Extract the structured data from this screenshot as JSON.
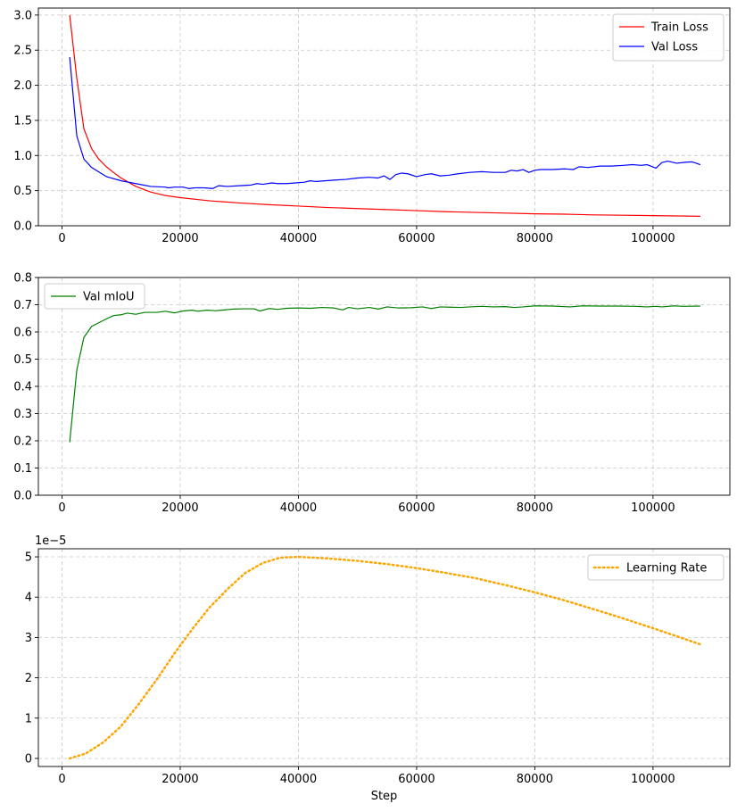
{
  "chart_data": [
    {
      "type": "line",
      "xlim": [
        -4000,
        113000
      ],
      "ylim": [
        0,
        3.1
      ],
      "xticks": [
        0,
        20000,
        40000,
        60000,
        80000,
        100000
      ],
      "xtick_labels": [
        "0",
        "20000",
        "40000",
        "60000",
        "80000",
        "100000"
      ],
      "yticks": [
        0,
        0.5,
        1.0,
        1.5,
        2.0,
        2.5,
        3.0
      ],
      "ytick_labels": [
        "0.0",
        "0.5",
        "1.0",
        "1.5",
        "2.0",
        "2.5",
        "3.0"
      ],
      "grid": true,
      "legend_position": "top-right",
      "xlabel": "",
      "ylabel": "",
      "series": [
        {
          "name": "Train Loss",
          "color": "#ff0000",
          "style": "solid",
          "x": [
            1300,
            2500,
            3700,
            5000,
            6200,
            7500,
            8700,
            10000,
            12500,
            15000,
            17500,
            20000,
            25000,
            30000,
            35000,
            40000,
            45000,
            50000,
            55000,
            60000,
            65000,
            70000,
            75000,
            80000,
            85000,
            90000,
            95000,
            100000,
            104000,
            108000
          ],
          "y": [
            3.0,
            2.1,
            1.38,
            1.1,
            0.95,
            0.84,
            0.76,
            0.68,
            0.56,
            0.48,
            0.43,
            0.4,
            0.355,
            0.325,
            0.3,
            0.28,
            0.26,
            0.245,
            0.23,
            0.215,
            0.2,
            0.19,
            0.18,
            0.17,
            0.165,
            0.155,
            0.15,
            0.145,
            0.14,
            0.135
          ]
        },
        {
          "name": "Val Loss",
          "color": "#0000ff",
          "style": "solid",
          "x": [
            1300,
            2500,
            3700,
            5000,
            7500,
            10000,
            12500,
            15000,
            17500,
            18000,
            19000,
            20500,
            21500,
            22500,
            24000,
            25500,
            26500,
            28000,
            30000,
            32000,
            33000,
            34000,
            35500,
            36500,
            38000,
            39500,
            41000,
            42000,
            43000,
            44500,
            46000,
            48000,
            50000,
            52000,
            53500,
            54500,
            55500,
            56500,
            57500,
            58500,
            60000,
            61500,
            62500,
            64000,
            65500,
            67000,
            69000,
            71000,
            73000,
            75000,
            76000,
            77000,
            78000,
            79000,
            80000,
            81000,
            83000,
            85000,
            86500,
            87500,
            89000,
            91000,
            93000,
            95000,
            96500,
            98000,
            99000,
            100500,
            101500,
            102500,
            104000,
            105000,
            106500,
            107000,
            108000
          ],
          "y": [
            2.4,
            1.28,
            0.95,
            0.83,
            0.7,
            0.64,
            0.6,
            0.56,
            0.55,
            0.54,
            0.55,
            0.55,
            0.53,
            0.54,
            0.54,
            0.53,
            0.57,
            0.56,
            0.57,
            0.58,
            0.6,
            0.59,
            0.61,
            0.6,
            0.6,
            0.61,
            0.62,
            0.64,
            0.63,
            0.64,
            0.65,
            0.66,
            0.68,
            0.69,
            0.68,
            0.71,
            0.66,
            0.73,
            0.75,
            0.74,
            0.7,
            0.73,
            0.74,
            0.71,
            0.72,
            0.74,
            0.76,
            0.77,
            0.76,
            0.76,
            0.79,
            0.78,
            0.8,
            0.76,
            0.79,
            0.8,
            0.8,
            0.81,
            0.8,
            0.84,
            0.83,
            0.85,
            0.85,
            0.86,
            0.87,
            0.86,
            0.87,
            0.82,
            0.9,
            0.92,
            0.89,
            0.9,
            0.91,
            0.9,
            0.87
          ]
        }
      ]
    },
    {
      "type": "line",
      "xlim": [
        -4000,
        113000
      ],
      "ylim": [
        0,
        0.8
      ],
      "xticks": [
        0,
        20000,
        40000,
        60000,
        80000,
        100000
      ],
      "xtick_labels": [
        "0",
        "20000",
        "40000",
        "60000",
        "80000",
        "100000"
      ],
      "yticks": [
        0,
        0.1,
        0.2,
        0.3,
        0.4,
        0.5,
        0.6,
        0.7,
        0.8
      ],
      "ytick_labels": [
        "0.0",
        "0.1",
        "0.2",
        "0.3",
        "0.4",
        "0.5",
        "0.6",
        "0.7",
        "0.8"
      ],
      "grid": true,
      "legend_position": "top-left",
      "xlabel": "",
      "ylabel": "",
      "series": [
        {
          "name": "Val mIoU",
          "color": "#008000",
          "style": "solid",
          "x": [
            1300,
            2500,
            3700,
            5000,
            7500,
            8700,
            10000,
            11000,
            12500,
            14000,
            16000,
            17500,
            19000,
            20500,
            22000,
            23000,
            24500,
            26000,
            27000,
            29000,
            31000,
            32500,
            33500,
            35000,
            36500,
            38000,
            40000,
            42000,
            44000,
            46000,
            47500,
            48500,
            50000,
            52000,
            53500,
            55000,
            57000,
            59000,
            61000,
            62500,
            64000,
            65500,
            67500,
            69000,
            71000,
            73000,
            75000,
            76500,
            78000,
            80000,
            83000,
            86000,
            88000,
            91000,
            94000,
            97000,
            99000,
            100500,
            101500,
            103500,
            105000,
            108000
          ],
          "y": [
            0.195,
            0.46,
            0.58,
            0.62,
            0.648,
            0.66,
            0.663,
            0.669,
            0.665,
            0.672,
            0.672,
            0.676,
            0.67,
            0.677,
            0.68,
            0.676,
            0.68,
            0.678,
            0.68,
            0.684,
            0.685,
            0.685,
            0.677,
            0.686,
            0.683,
            0.687,
            0.688,
            0.687,
            0.69,
            0.688,
            0.681,
            0.69,
            0.685,
            0.69,
            0.684,
            0.692,
            0.688,
            0.689,
            0.692,
            0.686,
            0.692,
            0.691,
            0.69,
            0.692,
            0.694,
            0.692,
            0.693,
            0.69,
            0.692,
            0.696,
            0.695,
            0.692,
            0.696,
            0.695,
            0.695,
            0.694,
            0.692,
            0.694,
            0.692,
            0.696,
            0.694,
            0.695
          ]
        }
      ]
    },
    {
      "type": "line",
      "xlim": [
        -4000,
        113000
      ],
      "ylim": [
        -0.2,
        5.2
      ],
      "xticks": [
        0,
        20000,
        40000,
        60000,
        80000,
        100000
      ],
      "xtick_labels": [
        "0",
        "20000",
        "40000",
        "60000",
        "80000",
        "100000"
      ],
      "yticks": [
        0,
        1,
        2,
        3,
        4,
        5
      ],
      "ytick_labels": [
        "0",
        "1",
        "2",
        "3",
        "4",
        "5"
      ],
      "y_multiplier_label": "1e−5",
      "grid": true,
      "legend_position": "top-right",
      "xlabel": "Step",
      "ylabel": "",
      "series": [
        {
          "name": "Learning Rate",
          "color": "#ffa500",
          "style": "dotted",
          "x": [
            1300,
            4000,
            7000,
            10000,
            13000,
            16000,
            19000,
            22000,
            25000,
            28000,
            31000,
            34000,
            37000,
            40000,
            45000,
            50000,
            55000,
            60000,
            65000,
            70000,
            75000,
            80000,
            85000,
            90000,
            95000,
            100000,
            104000,
            108000
          ],
          "y": [
            0.0,
            0.12,
            0.4,
            0.8,
            1.35,
            1.95,
            2.6,
            3.2,
            3.75,
            4.2,
            4.6,
            4.85,
            4.98,
            5.0,
            4.96,
            4.9,
            4.82,
            4.72,
            4.6,
            4.47,
            4.3,
            4.12,
            3.92,
            3.7,
            3.47,
            3.23,
            3.03,
            2.83
          ]
        }
      ]
    }
  ]
}
